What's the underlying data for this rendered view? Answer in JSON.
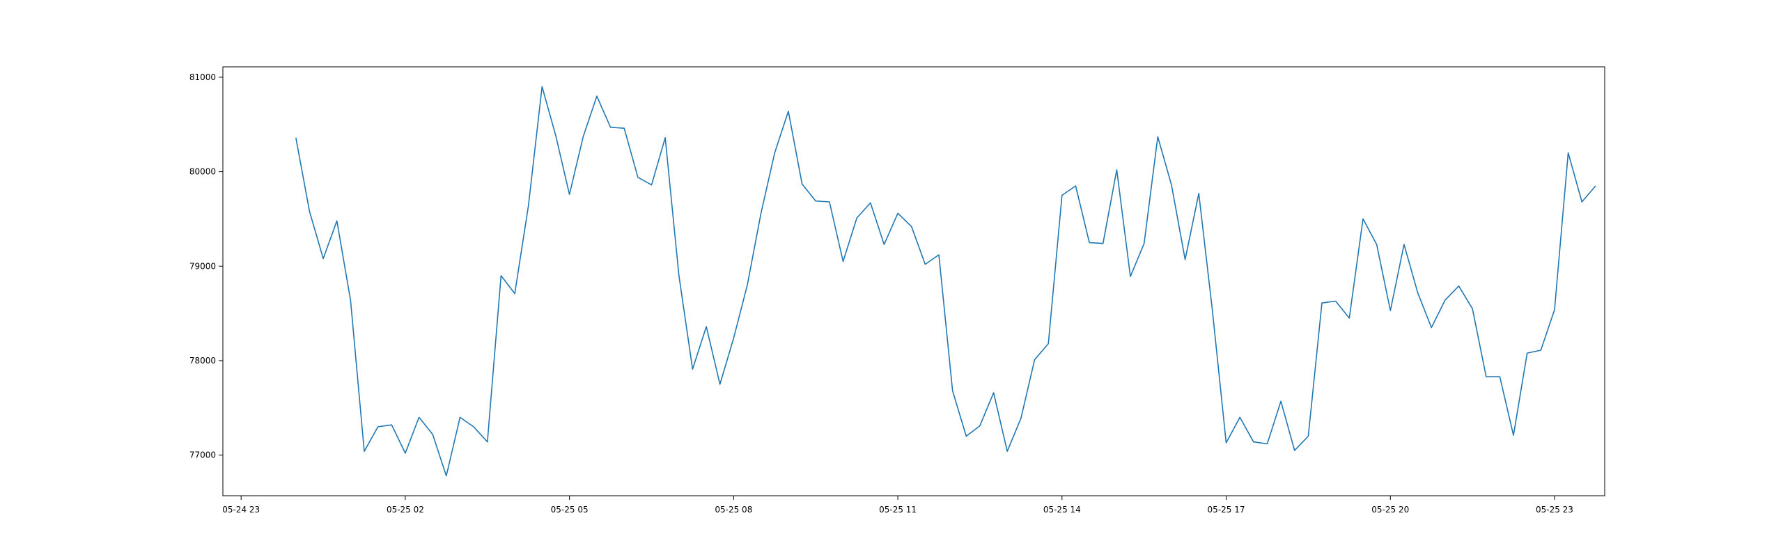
{
  "chart_data": {
    "type": "line",
    "title": "",
    "xlabel": "",
    "ylabel": "",
    "grid": false,
    "legend": "none",
    "xlim": [
      "2024-05-24 22:40",
      "2024-05-25 23:55"
    ],
    "ylim": [
      76570,
      81110
    ],
    "x_ticks": [
      {
        "t": "2024-05-24 23:00",
        "label": "05-24 23"
      },
      {
        "t": "2024-05-25 02:00",
        "label": "05-25 02"
      },
      {
        "t": "2024-05-25 05:00",
        "label": "05-25 05"
      },
      {
        "t": "2024-05-25 08:00",
        "label": "05-25 08"
      },
      {
        "t": "2024-05-25 11:00",
        "label": "05-25 11"
      },
      {
        "t": "2024-05-25 14:00",
        "label": "05-25 14"
      },
      {
        "t": "2024-05-25 17:00",
        "label": "05-25 17"
      },
      {
        "t": "2024-05-25 20:00",
        "label": "05-25 20"
      },
      {
        "t": "2024-05-25 23:00",
        "label": "05-25 23"
      }
    ],
    "y_ticks": [
      77000,
      78000,
      79000,
      80000,
      81000
    ],
    "series": [
      {
        "name": "",
        "color": "#1f77b4",
        "x": [
          "2024-05-25 00:00",
          "2024-05-25 00:15",
          "2024-05-25 00:30",
          "2024-05-25 00:45",
          "2024-05-25 01:00",
          "2024-05-25 01:15",
          "2024-05-25 01:30",
          "2024-05-25 01:45",
          "2024-05-25 02:00",
          "2024-05-25 02:15",
          "2024-05-25 02:30",
          "2024-05-25 02:45",
          "2024-05-25 03:00",
          "2024-05-25 03:15",
          "2024-05-25 03:30",
          "2024-05-25 03:45",
          "2024-05-25 04:00",
          "2024-05-25 04:15",
          "2024-05-25 04:30",
          "2024-05-25 04:45",
          "2024-05-25 05:00",
          "2024-05-25 05:15",
          "2024-05-25 05:30",
          "2024-05-25 05:45",
          "2024-05-25 06:00",
          "2024-05-25 06:15",
          "2024-05-25 06:30",
          "2024-05-25 06:45",
          "2024-05-25 07:00",
          "2024-05-25 07:15",
          "2024-05-25 07:30",
          "2024-05-25 07:45",
          "2024-05-25 08:00",
          "2024-05-25 08:15",
          "2024-05-25 08:30",
          "2024-05-25 08:45",
          "2024-05-25 09:00",
          "2024-05-25 09:15",
          "2024-05-25 09:30",
          "2024-05-25 09:45",
          "2024-05-25 10:00",
          "2024-05-25 10:15",
          "2024-05-25 10:30",
          "2024-05-25 10:45",
          "2024-05-25 11:00",
          "2024-05-25 11:15",
          "2024-05-25 11:30",
          "2024-05-25 11:45",
          "2024-05-25 12:00",
          "2024-05-25 12:15",
          "2024-05-25 12:30",
          "2024-05-25 12:45",
          "2024-05-25 13:00",
          "2024-05-25 13:15",
          "2024-05-25 13:30",
          "2024-05-25 13:45",
          "2024-05-25 14:00",
          "2024-05-25 14:15",
          "2024-05-25 14:30",
          "2024-05-25 14:45",
          "2024-05-25 15:00",
          "2024-05-25 15:15",
          "2024-05-25 15:30",
          "2024-05-25 15:45",
          "2024-05-25 16:00",
          "2024-05-25 16:15",
          "2024-05-25 16:30",
          "2024-05-25 16:45",
          "2024-05-25 17:00",
          "2024-05-25 17:15",
          "2024-05-25 17:30",
          "2024-05-25 17:45",
          "2024-05-25 18:00",
          "2024-05-25 18:15",
          "2024-05-25 18:30",
          "2024-05-25 18:45",
          "2024-05-25 19:00",
          "2024-05-25 19:15",
          "2024-05-25 19:30",
          "2024-05-25 19:45",
          "2024-05-25 20:00",
          "2024-05-25 20:15",
          "2024-05-25 20:30",
          "2024-05-25 20:45",
          "2024-05-25 21:00",
          "2024-05-25 21:15",
          "2024-05-25 21:30",
          "2024-05-25 21:45",
          "2024-05-25 22:00",
          "2024-05-25 22:15",
          "2024-05-25 22:30",
          "2024-05-25 22:45",
          "2024-05-25 23:00",
          "2024-05-25 23:15",
          "2024-05-25 23:30",
          "2024-05-25 23:45"
        ],
        "values": [
          80360,
          79580,
          79080,
          79480,
          78640,
          77040,
          77300,
          77320,
          77020,
          77400,
          77220,
          76780,
          77400,
          77300,
          77140,
          78900,
          78710,
          79640,
          80900,
          80380,
          79760,
          80370,
          80800,
          80470,
          80460,
          79940,
          79860,
          80360,
          78900,
          77910,
          78360,
          77750,
          78240,
          78800,
          79560,
          80200,
          80640,
          79870,
          79690,
          79680,
          79050,
          79510,
          79670,
          79230,
          79560,
          79420,
          79020,
          79120,
          77680,
          77200,
          77310,
          77660,
          77040,
          77390,
          78010,
          78180,
          79750,
          79850,
          79250,
          79240,
          80020,
          78890,
          79240,
          80370,
          79860,
          79070,
          79770,
          78520,
          77130,
          77400,
          77140,
          77120,
          77570,
          77050,
          77200,
          78610,
          78630,
          78450,
          79500,
          79230,
          78530,
          79230,
          78720,
          78350,
          78640,
          78790,
          78550,
          77830,
          77830,
          77210,
          78080,
          78110,
          78540,
          80200,
          79680,
          79850
        ]
      }
    ]
  }
}
